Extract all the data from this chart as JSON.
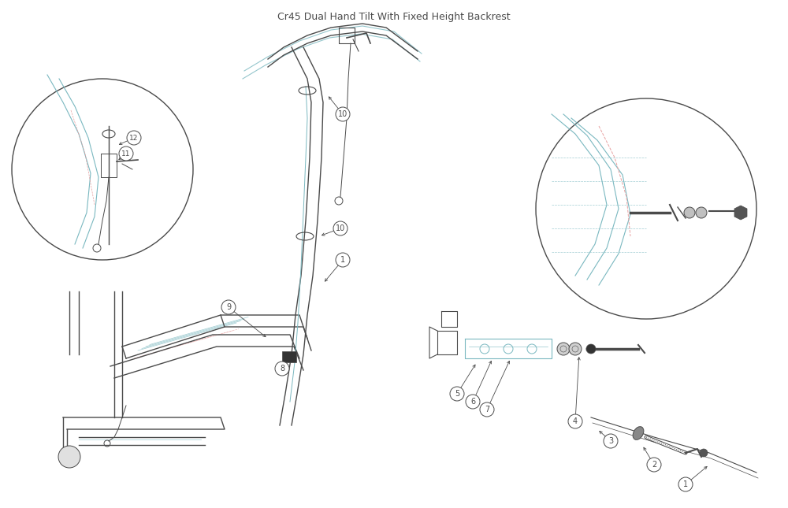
{
  "title": "Cr45 Dual Hand Tilt With Fixed Height Backrest",
  "background": "#ffffff",
  "line_color_main": "#4a4a4a",
  "line_color_light": "#7ab8c0",
  "line_color_pink": "#e8a0a0",
  "fig_width": 10.0,
  "fig_height": 6.45
}
